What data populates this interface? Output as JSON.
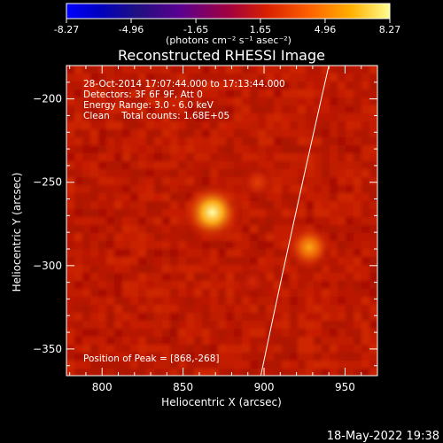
{
  "chart_data": {
    "type": "heatmap",
    "title": "Reconstructed RHESSI Image",
    "xlabel": "Heliocentric X (arcsec)",
    "ylabel": "Heliocentric Y (arcsec)",
    "xlim": [
      778,
      970
    ],
    "ylim": [
      -366,
      -180
    ],
    "xticks": [
      800,
      850,
      900,
      950
    ],
    "yticks": [
      -200,
      -250,
      -300,
      -350
    ],
    "colorbar": {
      "label": "(photons cm⁻² s⁻¹ asec⁻²)",
      "ticks": [
        "-8.27",
        "-4.96",
        "-1.65",
        "1.65",
        "4.96",
        "8.27"
      ],
      "range": [
        -8.27,
        8.27
      ]
    },
    "info_lines": [
      "28-Oct-2014 17:07:44.000 to 17:13:44.000",
      "Detectors: 3F 6F 9F, Att 0",
      "Energy Range: 3.0 - 6.0 keV",
      "Clean    Total counts: 1.68E+05"
    ],
    "peak_label": "Position of Peak = [868,-268]",
    "timestamp": "18-May-2022 19:38",
    "sources": [
      {
        "x": 868,
        "y": -268,
        "intensity": 8.27
      },
      {
        "x": 928,
        "y": -289,
        "intensity": 6.0
      },
      {
        "x": 896,
        "y": -250,
        "intensity": 3.4
      },
      {
        "x": 893,
        "y": -310,
        "intensity": 2.5
      }
    ],
    "limb_line": [
      [
        898,
        -366
      ],
      [
        940,
        -180
      ]
    ]
  }
}
